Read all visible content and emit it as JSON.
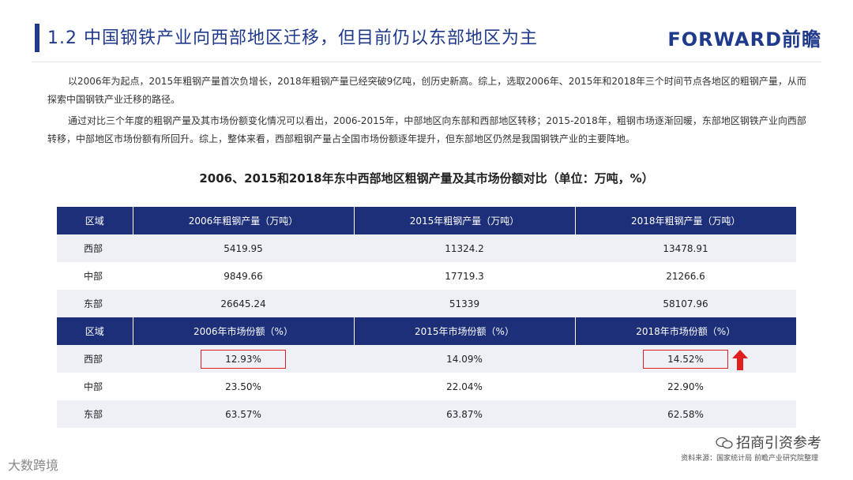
{
  "header": {
    "title": "1.2  中国钢铁产业向西部地区迁移，但目前仍以东部地区为主",
    "logo_text": "FORWARD前瞻"
  },
  "paragraphs": [
    "以2006年为起点，2015年粗钢产量首次负增长，2018年粗钢产量已经突破9亿吨，创历史新高。综上，选取2006年、2015年和2018年三个时间节点各地区的粗钢产量，从而探索中国钢铁产业迁移的路径。",
    "通过对比三个年度的粗钢产量及其市场份额变化情况可以看出，2006-2015年，中部地区向东部和西部地区转移；2015-2018年，粗钢市场逐渐回暖，东部地区钢铁产业向西部转移，中部地区市场份额有所回升。综上，整体来看，西部粗钢产量占全国市场份额逐年提升，但东部地区仍然是我国钢铁产业的主要阵地。"
  ],
  "table": {
    "title": "2006、2015和2018年东中西部地区粗钢产量及其市场份额对比（单位：万吨，%）",
    "production_header": [
      "区域",
      "2006年粗钢产量（万吨）",
      "2015年粗钢产量（万吨）",
      "2018年粗钢产量（万吨）"
    ],
    "production_rows": [
      {
        "region": "西部",
        "v2006": "5419.95",
        "v2015": "11324.2",
        "v2018": "13478.91"
      },
      {
        "region": "中部",
        "v2006": "9849.66",
        "v2015": "17719.3",
        "v2018": "21266.6"
      },
      {
        "region": "东部",
        "v2006": "26645.24",
        "v2015": "51339",
        "v2018": "58107.96"
      }
    ],
    "share_header": [
      "区域",
      "2006年市场份额（%）",
      "2015年市场份额（%）",
      "2018年市场份额（%）"
    ],
    "share_rows": [
      {
        "region": "西部",
        "v2006": "12.93%",
        "v2015": "14.09%",
        "v2018": "14.52%"
      },
      {
        "region": "中部",
        "v2006": "23.50%",
        "v2015": "22.04%",
        "v2018": "22.90%"
      },
      {
        "region": "东部",
        "v2006": "63.57%",
        "v2015": "63.87%",
        "v2018": "62.58%"
      }
    ]
  },
  "footer": {
    "source": "资料来源：国家统计局 前瞻产业研究院整理",
    "wechat_label": "招商引资参考",
    "corner_label": "大数跨境"
  },
  "colors": {
    "brand_blue": "#1f3a8a",
    "header_navy": "#1c2f78",
    "highlight_red": "#e02020"
  }
}
